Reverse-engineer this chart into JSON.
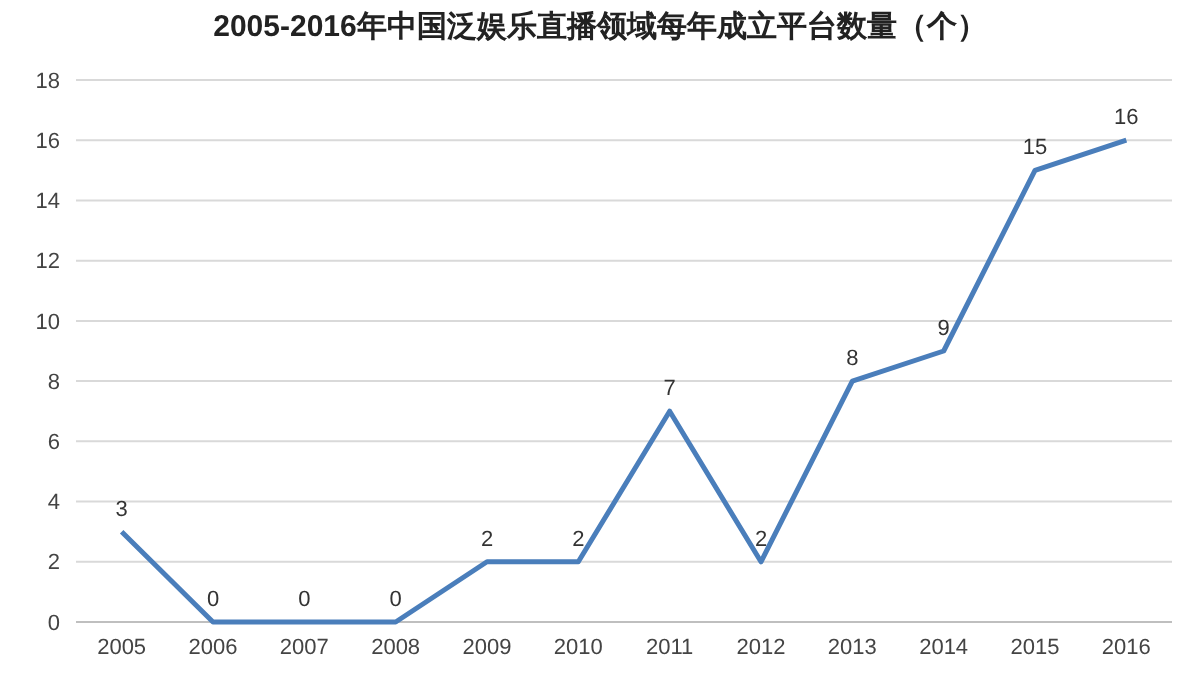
{
  "chart_data": {
    "type": "line",
    "title": "2005-2016年中国泛娱乐直播领域每年成立平台数量（个）",
    "categories": [
      "2005",
      "2006",
      "2007",
      "2008",
      "2009",
      "2010",
      "2011",
      "2012",
      "2013",
      "2014",
      "2015",
      "2016"
    ],
    "series": [
      {
        "color": "#4a7ebb",
        "values": [
          3,
          0,
          0,
          0,
          2,
          2,
          7,
          2,
          8,
          9,
          15,
          16
        ]
      }
    ],
    "ylim": [
      0,
      18
    ],
    "yticks": [
      0,
      2,
      4,
      6,
      8,
      10,
      12,
      14,
      16,
      18
    ],
    "grid": "y",
    "data_labels": true,
    "marker": "none",
    "line_style": "solid"
  }
}
